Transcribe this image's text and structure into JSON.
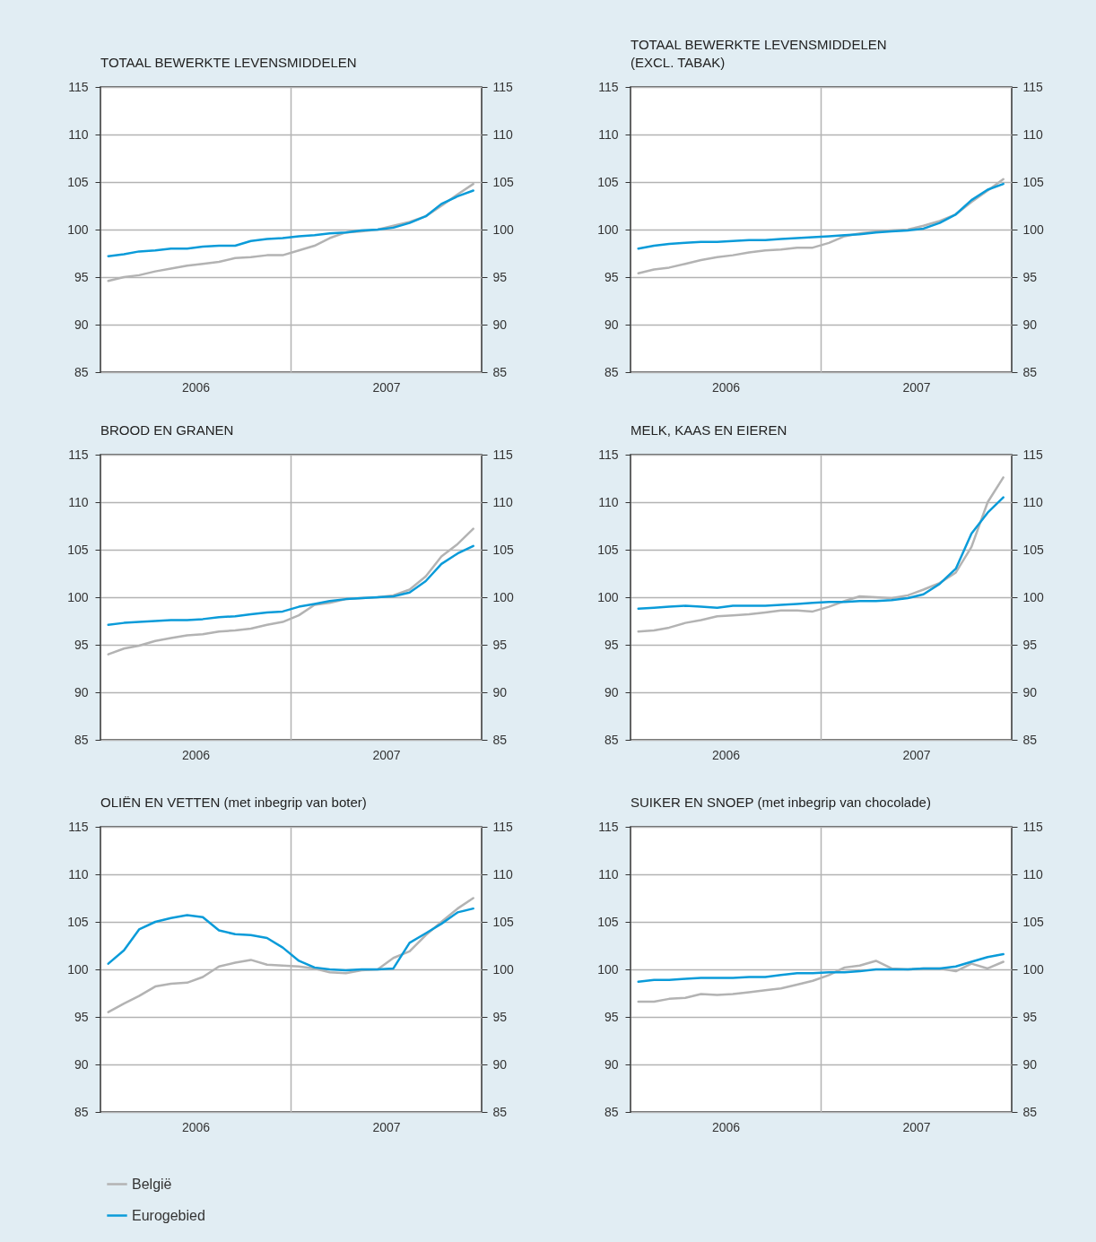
{
  "chart_data": [
    {
      "type": "line",
      "title": "TOTAAL BEWERKTE LEVENSMIDDELEN",
      "x": [
        "2006-01-16",
        "2006-02-15",
        "2006-03-16",
        "2006-04-16",
        "2006-05-16",
        "2006-06-16",
        "2006-07-16",
        "2006-08-16",
        "2006-09-16",
        "2006-10-16",
        "2006-11-16",
        "2006-12-16",
        "2007-01-16",
        "2007-02-15",
        "2007-03-16",
        "2007-04-16",
        "2007-05-16",
        "2007-06-16",
        "2007-07-16",
        "2007-08-16",
        "2007-09-16",
        "2007-10-16",
        "2007-11-16",
        "2007-12-16"
      ],
      "series": [
        {
          "color": "#b3b3b3",
          "values": [
            94.6,
            95.0,
            95.2,
            95.6,
            95.9,
            96.2,
            96.4,
            96.6,
            97.0,
            97.1,
            97.3,
            97.3,
            97.8,
            98.3,
            99.1,
            99.7,
            99.8,
            100.0,
            100.4,
            100.8,
            101.4,
            102.5,
            103.7,
            104.8
          ]
        },
        {
          "color": "#0a9bd9",
          "values": [
            97.2,
            97.4,
            97.7,
            97.8,
            98.0,
            98.0,
            98.2,
            98.3,
            98.3,
            98.8,
            99.0,
            99.1,
            99.3,
            99.4,
            99.6,
            99.7,
            99.9,
            100.0,
            100.2,
            100.7,
            101.4,
            102.7,
            103.5,
            104.1
          ]
        }
      ],
      "xlim": [
        "2006-01-01",
        "2008-01-01"
      ],
      "xticks": [
        {
          "value": "2006-07-02",
          "label": "2006"
        },
        {
          "value": "2007-07-02",
          "label": "2007"
        }
      ],
      "ylim": [
        85,
        115
      ],
      "yticks": [
        85,
        90,
        95,
        100,
        105,
        110,
        115
      ],
      "y2lim": [
        85,
        115
      ],
      "y2ticks": [
        85,
        90,
        95,
        100,
        105,
        110,
        115
      ],
      "ref_lines": [
        {
          "axis": "x",
          "value": "2007-01-01",
          "color": "#b3b3b3"
        }
      ],
      "grid": "y"
    },
    {
      "type": "line",
      "title": "TOTAAL BEWERKTE LEVENSMIDDELEN\n(EXCL. TABAK)",
      "x": [
        "2006-01-16",
        "2006-02-15",
        "2006-03-16",
        "2006-04-16",
        "2006-05-16",
        "2006-06-16",
        "2006-07-16",
        "2006-08-16",
        "2006-09-16",
        "2006-10-16",
        "2006-11-16",
        "2006-12-16",
        "2007-01-16",
        "2007-02-15",
        "2007-03-16",
        "2007-04-16",
        "2007-05-16",
        "2007-06-16",
        "2007-07-16",
        "2007-08-16",
        "2007-09-16",
        "2007-10-16",
        "2007-11-16",
        "2007-12-16"
      ],
      "series": [
        {
          "color": "#b3b3b3",
          "values": [
            95.4,
            95.8,
            96.0,
            96.4,
            96.8,
            97.1,
            97.3,
            97.6,
            97.8,
            97.9,
            98.1,
            98.1,
            98.6,
            99.3,
            99.6,
            99.8,
            99.9,
            100.0,
            100.4,
            100.9,
            101.6,
            102.9,
            104.1,
            105.3
          ]
        },
        {
          "color": "#0a9bd9",
          "values": [
            98.0,
            98.3,
            98.5,
            98.6,
            98.7,
            98.7,
            98.8,
            98.9,
            98.9,
            99.0,
            99.1,
            99.2,
            99.3,
            99.4,
            99.5,
            99.7,
            99.8,
            99.9,
            100.1,
            100.7,
            101.6,
            103.1,
            104.2,
            104.8
          ]
        }
      ],
      "xlim": [
        "2006-01-01",
        "2008-01-01"
      ],
      "xticks": [
        {
          "value": "2006-07-02",
          "label": "2006"
        },
        {
          "value": "2007-07-02",
          "label": "2007"
        }
      ],
      "ylim": [
        85,
        115
      ],
      "yticks": [
        85,
        90,
        95,
        100,
        105,
        110,
        115
      ],
      "y2lim": [
        85,
        115
      ],
      "y2ticks": [
        85,
        90,
        95,
        100,
        105,
        110,
        115
      ],
      "ref_lines": [
        {
          "axis": "x",
          "value": "2007-01-01",
          "color": "#b3b3b3"
        }
      ],
      "grid": "y"
    },
    {
      "type": "line",
      "title": "BROOD EN GRANEN",
      "x": [
        "2006-01-16",
        "2006-02-15",
        "2006-03-16",
        "2006-04-16",
        "2006-05-16",
        "2006-06-16",
        "2006-07-16",
        "2006-08-16",
        "2006-09-16",
        "2006-10-16",
        "2006-11-16",
        "2006-12-16",
        "2007-01-16",
        "2007-02-15",
        "2007-03-16",
        "2007-04-16",
        "2007-05-16",
        "2007-06-16",
        "2007-07-16",
        "2007-08-16",
        "2007-09-16",
        "2007-10-16",
        "2007-11-16",
        "2007-12-16"
      ],
      "series": [
        {
          "color": "#b3b3b3",
          "values": [
            94.0,
            94.6,
            94.9,
            95.4,
            95.7,
            96.0,
            96.1,
            96.4,
            96.5,
            96.7,
            97.1,
            97.4,
            98.1,
            99.2,
            99.4,
            99.8,
            99.9,
            100.0,
            100.2,
            100.8,
            102.2,
            104.3,
            105.6,
            107.2
          ]
        },
        {
          "color": "#0a9bd9",
          "values": [
            97.1,
            97.3,
            97.4,
            97.5,
            97.6,
            97.6,
            97.7,
            97.9,
            98.0,
            98.2,
            98.4,
            98.5,
            99.0,
            99.3,
            99.6,
            99.8,
            99.9,
            100.0,
            100.1,
            100.5,
            101.7,
            103.5,
            104.6,
            105.4
          ]
        }
      ],
      "xlim": [
        "2006-01-01",
        "2008-01-01"
      ],
      "xticks": [
        {
          "value": "2006-07-02",
          "label": "2006"
        },
        {
          "value": "2007-07-02",
          "label": "2007"
        }
      ],
      "ylim": [
        85,
        115
      ],
      "yticks": [
        85,
        90,
        95,
        100,
        105,
        110,
        115
      ],
      "y2lim": [
        85,
        115
      ],
      "y2ticks": [
        85,
        90,
        95,
        100,
        105,
        110,
        115
      ],
      "ref_lines": [
        {
          "axis": "x",
          "value": "2007-01-01",
          "color": "#b3b3b3"
        }
      ],
      "grid": "y"
    },
    {
      "type": "line",
      "title": "MELK, KAAS EN EIEREN",
      "x": [
        "2006-01-16",
        "2006-02-15",
        "2006-03-16",
        "2006-04-16",
        "2006-05-16",
        "2006-06-16",
        "2006-07-16",
        "2006-08-16",
        "2006-09-16",
        "2006-10-16",
        "2006-11-16",
        "2006-12-16",
        "2007-01-16",
        "2007-02-15",
        "2007-03-16",
        "2007-04-16",
        "2007-05-16",
        "2007-06-16",
        "2007-07-16",
        "2007-08-16",
        "2007-09-16",
        "2007-10-16",
        "2007-11-16",
        "2007-12-16"
      ],
      "series": [
        {
          "color": "#b3b3b3",
          "values": [
            96.4,
            96.5,
            96.8,
            97.3,
            97.6,
            98.0,
            98.1,
            98.2,
            98.4,
            98.6,
            98.6,
            98.5,
            99.0,
            99.6,
            100.1,
            100.0,
            99.9,
            100.2,
            100.8,
            101.5,
            102.6,
            105.3,
            110.0,
            112.6
          ]
        },
        {
          "color": "#0a9bd9",
          "values": [
            98.8,
            98.9,
            99.0,
            99.1,
            99.0,
            98.9,
            99.1,
            99.1,
            99.1,
            99.2,
            99.3,
            99.4,
            99.5,
            99.5,
            99.6,
            99.6,
            99.7,
            99.9,
            100.3,
            101.4,
            103.0,
            106.7,
            108.9,
            110.5
          ]
        }
      ],
      "xlim": [
        "2006-01-01",
        "2008-01-01"
      ],
      "xticks": [
        {
          "value": "2006-07-02",
          "label": "2006"
        },
        {
          "value": "2007-07-02",
          "label": "2007"
        }
      ],
      "ylim": [
        85,
        115
      ],
      "yticks": [
        85,
        90,
        95,
        100,
        105,
        110,
        115
      ],
      "y2lim": [
        85,
        115
      ],
      "y2ticks": [
        85,
        90,
        95,
        100,
        105,
        110,
        115
      ],
      "ref_lines": [
        {
          "axis": "x",
          "value": "2007-01-01",
          "color": "#b3b3b3"
        }
      ],
      "grid": "y"
    },
    {
      "type": "line",
      "title": "OLIËN EN VETTEN (met inbegrip van boter)",
      "x": [
        "2006-01-16",
        "2006-02-15",
        "2006-03-16",
        "2006-04-16",
        "2006-05-16",
        "2006-06-16",
        "2006-07-16",
        "2006-08-16",
        "2006-09-16",
        "2006-10-16",
        "2006-11-16",
        "2006-12-16",
        "2007-01-16",
        "2007-02-15",
        "2007-03-16",
        "2007-04-16",
        "2007-05-16",
        "2007-06-16",
        "2007-07-16",
        "2007-08-16",
        "2007-09-16",
        "2007-10-16",
        "2007-11-16",
        "2007-12-16"
      ],
      "series": [
        {
          "name": "België",
          "color": "#b3b3b3",
          "values": [
            95.5,
            96.4,
            97.2,
            98.2,
            98.5,
            98.6,
            99.2,
            100.3,
            100.7,
            101.0,
            100.5,
            100.4,
            100.3,
            100.1,
            99.7,
            99.6,
            99.9,
            100.0,
            101.2,
            101.9,
            103.6,
            105.0,
            106.4,
            107.5
          ]
        },
        {
          "name": "Eurogebied",
          "color": "#0a9bd9",
          "values": [
            100.6,
            102.0,
            104.2,
            105.0,
            105.4,
            105.7,
            105.5,
            104.1,
            103.7,
            103.6,
            103.3,
            102.3,
            100.9,
            100.2,
            100.0,
            99.9,
            100.0,
            100.0,
            100.1,
            102.8,
            103.8,
            104.8,
            106.0,
            106.4
          ]
        }
      ],
      "xlim": [
        "2006-01-01",
        "2008-01-01"
      ],
      "xticks": [
        {
          "value": "2006-07-02",
          "label": "2006"
        },
        {
          "value": "2007-07-02",
          "label": "2007"
        }
      ],
      "ylim": [
        85,
        115
      ],
      "yticks": [
        85,
        90,
        95,
        100,
        105,
        110,
        115
      ],
      "y2lim": [
        85,
        115
      ],
      "y2ticks": [
        85,
        90,
        95,
        100,
        105,
        110,
        115
      ],
      "ref_lines": [
        {
          "axis": "x",
          "value": "2007-01-01",
          "color": "#b3b3b3"
        }
      ],
      "grid": "y",
      "legend": "bottom"
    },
    {
      "type": "line",
      "title": "SUIKER EN SNOEP (met inbegrip van chocolade)",
      "x": [
        "2006-01-16",
        "2006-02-15",
        "2006-03-16",
        "2006-04-16",
        "2006-05-16",
        "2006-06-16",
        "2006-07-16",
        "2006-08-16",
        "2006-09-16",
        "2006-10-16",
        "2006-11-16",
        "2006-12-16",
        "2007-01-16",
        "2007-02-15",
        "2007-03-16",
        "2007-04-16",
        "2007-05-16",
        "2007-06-16",
        "2007-07-16",
        "2007-08-16",
        "2007-09-16",
        "2007-10-16",
        "2007-11-16",
        "2007-12-16"
      ],
      "series": [
        {
          "color": "#b3b3b3",
          "values": [
            96.6,
            96.6,
            96.9,
            97.0,
            97.4,
            97.3,
            97.4,
            97.6,
            97.8,
            98.0,
            98.4,
            98.8,
            99.4,
            100.2,
            100.4,
            100.9,
            100.1,
            100.0,
            100.1,
            100.1,
            99.8,
            100.6,
            100.1,
            100.8
          ]
        },
        {
          "color": "#0a9bd9",
          "values": [
            98.7,
            98.9,
            98.9,
            99.0,
            99.1,
            99.1,
            99.1,
            99.2,
            99.2,
            99.4,
            99.6,
            99.6,
            99.7,
            99.7,
            99.8,
            100.0,
            100.0,
            100.0,
            100.1,
            100.1,
            100.3,
            100.8,
            101.3,
            101.6
          ]
        }
      ],
      "xlim": [
        "2006-01-01",
        "2008-01-01"
      ],
      "xticks": [
        {
          "value": "2006-07-02",
          "label": "2006"
        },
        {
          "value": "2007-07-02",
          "label": "2007"
        }
      ],
      "ylim": [
        85,
        115
      ],
      "yticks": [
        85,
        90,
        95,
        100,
        105,
        110,
        115
      ],
      "y2lim": [
        85,
        115
      ],
      "y2ticks": [
        85,
        90,
        95,
        100,
        105,
        110,
        115
      ],
      "ref_lines": [
        {
          "axis": "x",
          "value": "2007-01-01",
          "color": "#b3b3b3"
        }
      ],
      "grid": "y"
    }
  ]
}
